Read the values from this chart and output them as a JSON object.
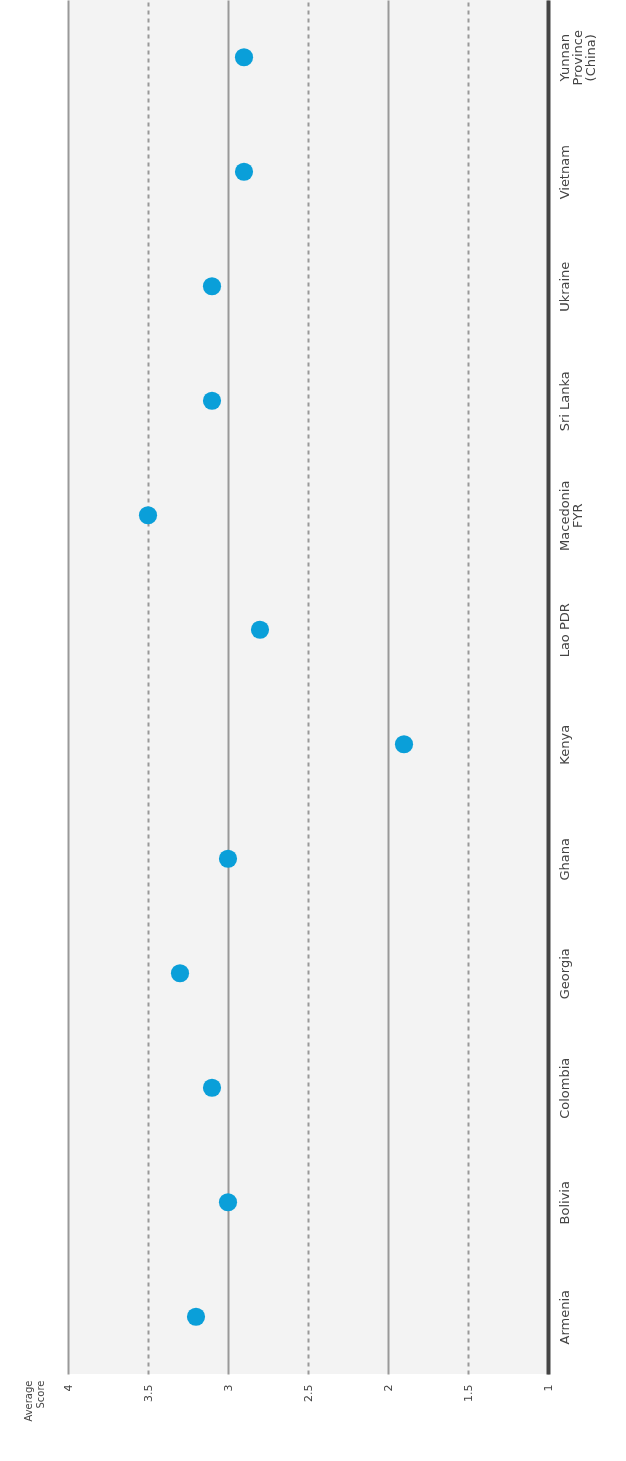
{
  "chart_data": {
    "type": "scatter",
    "orientation": "horizontal",
    "ylabel": "Average Score",
    "categories": [
      "Yunnan Province (China)",
      "Vietnam",
      "Ukraine",
      "Sri Lanka",
      "Macedonia FYR",
      "Lao PDR",
      "Kenya",
      "Ghana",
      "Georgia",
      "Colombia",
      "Bolivia",
      "Armenia"
    ],
    "series": [
      {
        "color": "#0a9fd9",
        "values": [
          2.9,
          2.9,
          3.1,
          3.1,
          3.5,
          2.8,
          1.9,
          3.0,
          3.3,
          3.1,
          3.0,
          3.2
        ]
      }
    ],
    "xlim": [
      4,
      1
    ],
    "xticks": [
      4,
      3.5,
      3,
      2.5,
      2,
      1.5,
      1
    ],
    "grid": true,
    "marker": "circle"
  }
}
